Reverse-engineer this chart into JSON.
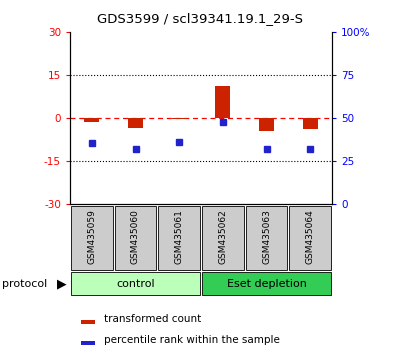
{
  "title": "GDS3599 / scl39341.19.1_29-S",
  "samples": [
    "GSM435059",
    "GSM435060",
    "GSM435061",
    "GSM435062",
    "GSM435063",
    "GSM435064"
  ],
  "red_values": [
    -1.5,
    -3.5,
    -0.5,
    11.0,
    -4.5,
    -4.0
  ],
  "blue_values": [
    -9.0,
    -11.0,
    -8.5,
    -1.5,
    -11.0,
    -11.0
  ],
  "ylim_left": [
    -30,
    30
  ],
  "ylim_right": [
    0,
    100
  ],
  "yticks_left": [
    -30,
    -15,
    0,
    15,
    30
  ],
  "yticks_right": [
    0,
    25,
    50,
    75,
    100
  ],
  "ytick_labels_left": [
    "-30",
    "-15",
    "0",
    "15",
    "30"
  ],
  "ytick_labels_right": [
    "0",
    "25",
    "50",
    "75",
    "100%"
  ],
  "protocol_label": "protocol",
  "legend_red_label": "transformed count",
  "legend_blue_label": "percentile rank within the sample",
  "bar_color_red": "#CC2200",
  "bar_color_blue": "#2222CC",
  "bg_color": "#FFFFFF",
  "group_light_color": "#BBFFBB",
  "group_dark_color": "#33CC55",
  "sample_box_color": "#CCCCCC",
  "control_label": "control",
  "eset_label": "Eset depletion"
}
